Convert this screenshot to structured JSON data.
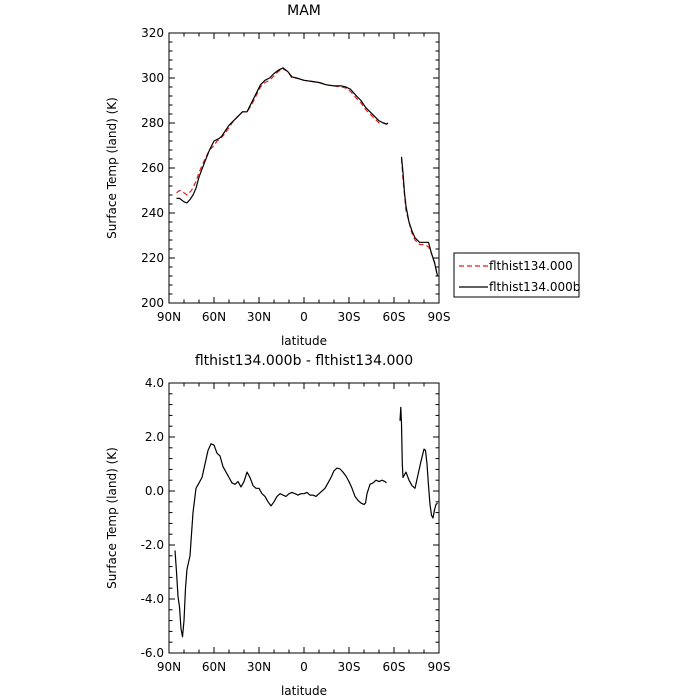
{
  "chart_data": [
    {
      "type": "line",
      "title": "MAM",
      "xlabel": "latitude",
      "ylabel": "Surface Temp (land) (K)",
      "x_ticks": [
        "90N",
        "60N",
        "30N",
        "0",
        "30S",
        "60S",
        "90S"
      ],
      "x_tick_values": [
        90,
        60,
        30,
        0,
        -30,
        -60,
        -90
      ],
      "xlim": [
        90,
        -90
      ],
      "ylim": [
        200,
        320
      ],
      "y_ticks": [
        "200",
        "220",
        "240",
        "260",
        "280",
        "300",
        "320"
      ],
      "y_tick_values": [
        200,
        220,
        240,
        260,
        280,
        300,
        320
      ],
      "legend_position": "right",
      "series": [
        {
          "name": "flthist134.000",
          "color": "#e0201b",
          "dash": "dashed",
          "segments": [
            [
              [
                85,
                249
              ],
              [
                83,
                250
              ],
              [
                80,
                249
              ],
              [
                78,
                248
              ],
              [
                75,
                250
              ],
              [
                72,
                254
              ],
              [
                70,
                258
              ],
              [
                66,
                264
              ],
              [
                63,
                268
              ],
              [
                60,
                270
              ],
              [
                58,
                272
              ],
              [
                56,
                273
              ],
              [
                53,
                275
              ],
              [
                50,
                278
              ],
              [
                47,
                281
              ],
              [
                44,
                283
              ],
              [
                41,
                285
              ],
              [
                38,
                285
              ],
              [
                35,
                288
              ],
              [
                32,
                292
              ],
              [
                29,
                296
              ],
              [
                26,
                298
              ],
              [
                23,
                299
              ],
              [
                20,
                301
              ],
              [
                17,
                303
              ],
              [
                14,
                304
              ],
              [
                11,
                303
              ],
              [
                8,
                300
              ],
              [
                5,
                300
              ],
              [
                0,
                299
              ],
              [
                -5,
                298.5
              ],
              [
                -10,
                298
              ],
              [
                -15,
                297
              ],
              [
                -20,
                296.5
              ],
              [
                -25,
                296
              ],
              [
                -28,
                295.5
              ],
              [
                -31,
                294
              ],
              [
                -35,
                291
              ],
              [
                -38,
                289
              ],
              [
                -41,
                286
              ],
              [
                -44,
                284
              ],
              [
                -47,
                282
              ],
              [
                -50,
                280
              ],
              [
                -53,
                280
              ],
              [
                -55,
                279.5
              ],
              [
                -56,
                280
              ]
            ],
            [
              [
                -65,
                264
              ],
              [
                -66,
                255
              ],
              [
                -67,
                248
              ],
              [
                -68,
                241
              ],
              [
                -70,
                236
              ],
              [
                -72,
                231
              ],
              [
                -74,
                228
              ],
              [
                -77,
                226
              ],
              [
                -80,
                226
              ],
              [
                -83,
                225
              ],
              [
                -85,
                222
              ],
              [
                -87,
                218
              ],
              [
                -89,
                212
              ]
            ]
          ]
        },
        {
          "name": "flthist134.000b",
          "color": "#000000",
          "dash": "solid",
          "segments": [
            [
              [
                85,
                246.5
              ],
              [
                83,
                246.5
              ],
              [
                80,
                245
              ],
              [
                78,
                244.5
              ],
              [
                76,
                246
              ],
              [
                74,
                248
              ],
              [
                72,
                251
              ],
              [
                70,
                256
              ],
              [
                66,
                263
              ],
              [
                63,
                268
              ],
              [
                60,
                272
              ],
              [
                57,
                273
              ],
              [
                55,
                274
              ],
              [
                53,
                276
              ],
              [
                50,
                279
              ],
              [
                47,
                281
              ],
              [
                44,
                283
              ],
              [
                41,
                285
              ],
              [
                38,
                285
              ],
              [
                35,
                289
              ],
              [
                32,
                293
              ],
              [
                29,
                297
              ],
              [
                26,
                299
              ],
              [
                23,
                300
              ],
              [
                20,
                302
              ],
              [
                17,
                303.5
              ],
              [
                14,
                304.5
              ],
              [
                11,
                303
              ],
              [
                8,
                300.5
              ],
              [
                5,
                300
              ],
              [
                0,
                299
              ],
              [
                -5,
                298.5
              ],
              [
                -10,
                298
              ],
              [
                -15,
                297
              ],
              [
                -20,
                296.5
              ],
              [
                -25,
                296.5
              ],
              [
                -28,
                296
              ],
              [
                -31,
                295
              ],
              [
                -35,
                292
              ],
              [
                -38,
                290
              ],
              [
                -41,
                287
              ],
              [
                -44,
                285
              ],
              [
                -47,
                283
              ],
              [
                -50,
                281
              ],
              [
                -53,
                280
              ],
              [
                -55,
                279.5
              ],
              [
                -56,
                280
              ]
            ],
            [
              [
                -65,
                265
              ],
              [
                -66,
                258
              ],
              [
                -67,
                249
              ],
              [
                -68,
                243
              ],
              [
                -70,
                236
              ],
              [
                -72,
                232
              ],
              [
                -74,
                229
              ],
              [
                -77,
                227
              ],
              [
                -80,
                227
              ],
              [
                -83,
                227
              ],
              [
                -85,
                222
              ],
              [
                -87,
                218
              ],
              [
                -89,
                212
              ]
            ]
          ]
        }
      ]
    },
    {
      "type": "line",
      "title": "flthist134.000b - flthist134.000",
      "xlabel": "latitude",
      "ylabel": "Surface Temp (land) (K)",
      "x_ticks": [
        "90N",
        "60N",
        "30N",
        "0",
        "30S",
        "60S",
        "90S"
      ],
      "x_tick_values": [
        90,
        60,
        30,
        0,
        -30,
        -60,
        -90
      ],
      "xlim": [
        90,
        -90
      ],
      "ylim": [
        -6.0,
        4.0
      ],
      "y_ticks": [
        "-6.0",
        "-4.0",
        "-2.0",
        "0.0",
        "2.0",
        "4.0"
      ],
      "y_tick_values": [
        -6,
        -4,
        -2,
        0,
        2,
        4
      ],
      "series": [
        {
          "name": "",
          "color": "#000000",
          "dash": "solid",
          "segments": [
            [
              [
                86,
                -2.2
              ],
              [
                85,
                -3.0
              ],
              [
                84,
                -3.9
              ],
              [
                83,
                -4.3
              ],
              [
                82,
                -5.1
              ],
              [
                81,
                -5.4
              ],
              [
                80,
                -4.8
              ],
              [
                79,
                -3.6
              ],
              [
                78,
                -2.9
              ],
              [
                76,
                -2.4
              ],
              [
                75,
                -1.6
              ],
              [
                74,
                -0.8
              ],
              [
                72,
                0.1
              ],
              [
                70,
                0.3
              ],
              [
                68,
                0.5
              ],
              [
                66,
                1.0
              ],
              [
                64,
                1.5
              ],
              [
                62,
                1.75
              ],
              [
                60,
                1.7
              ],
              [
                58,
                1.4
              ],
              [
                56,
                1.3
              ],
              [
                54,
                0.9
              ],
              [
                52,
                0.7
              ],
              [
                50,
                0.5
              ],
              [
                48,
                0.3
              ],
              [
                46,
                0.25
              ],
              [
                44,
                0.35
              ],
              [
                42,
                0.15
              ],
              [
                40,
                0.35
              ],
              [
                38,
                0.7
              ],
              [
                36,
                0.5
              ],
              [
                34,
                0.2
              ],
              [
                32,
                0.1
              ],
              [
                30,
                0.1
              ],
              [
                28,
                -0.1
              ],
              [
                26,
                -0.2
              ],
              [
                24,
                -0.4
              ],
              [
                22,
                -0.55
              ],
              [
                20,
                -0.4
              ],
              [
                18,
                -0.2
              ],
              [
                16,
                -0.1
              ],
              [
                14,
                -0.15
              ],
              [
                12,
                -0.2
              ],
              [
                10,
                -0.1
              ],
              [
                8,
                -0.05
              ],
              [
                6,
                -0.1
              ],
              [
                4,
                -0.15
              ],
              [
                2,
                -0.1
              ],
              [
                0,
                -0.1
              ],
              [
                -2,
                -0.05
              ],
              [
                -4,
                -0.15
              ],
              [
                -6,
                -0.15
              ],
              [
                -8,
                -0.2
              ],
              [
                -10,
                -0.1
              ],
              [
                -12,
                0.0
              ],
              [
                -14,
                0.1
              ],
              [
                -16,
                0.3
              ],
              [
                -18,
                0.5
              ],
              [
                -20,
                0.75
              ],
              [
                -22,
                0.85
              ],
              [
                -24,
                0.82
              ],
              [
                -26,
                0.7
              ],
              [
                -28,
                0.55
              ],
              [
                -30,
                0.35
              ],
              [
                -32,
                0.1
              ],
              [
                -34,
                -0.2
              ],
              [
                -36,
                -0.35
              ],
              [
                -38,
                -0.45
              ],
              [
                -40,
                -0.5
              ],
              [
                -41,
                -0.45
              ],
              [
                -42,
                -0.1
              ],
              [
                -44,
                0.25
              ],
              [
                -46,
                0.3
              ],
              [
                -48,
                0.4
              ],
              [
                -50,
                0.35
              ],
              [
                -52,
                0.4
              ],
              [
                -54,
                0.35
              ],
              [
                -55,
                0.3
              ]
            ],
            [
              [
                -64,
                2.6
              ],
              [
                -64.5,
                3.1
              ],
              [
                -65,
                2.5
              ],
              [
                -65.5,
                1.0
              ],
              [
                -66,
                0.5
              ],
              [
                -67,
                0.6
              ],
              [
                -68,
                0.7
              ],
              [
                -70,
                0.4
              ],
              [
                -72,
                0.2
              ],
              [
                -74,
                0.1
              ],
              [
                -76,
                0.6
              ],
              [
                -78,
                1.1
              ],
              [
                -80,
                1.55
              ],
              [
                -81,
                1.5
              ],
              [
                -82,
                1.0
              ],
              [
                -83,
                0.2
              ],
              [
                -84,
                -0.5
              ],
              [
                -85,
                -0.9
              ],
              [
                -86,
                -1.0
              ],
              [
                -87,
                -0.7
              ],
              [
                -88,
                -0.5
              ],
              [
                -89,
                -0.45
              ]
            ]
          ]
        }
      ]
    }
  ]
}
